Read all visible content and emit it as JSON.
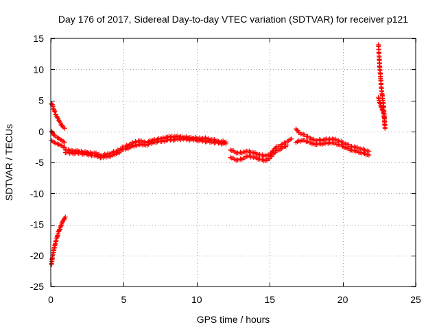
{
  "chart_data": {
    "type": "scatter",
    "title": "Day 176 of 2017, Sidereal Day-to-day VTEC variation (SDTVAR) for receiver p121",
    "xlabel": "GPS time / hours",
    "ylabel": "SDTVAR / TECUs",
    "xlim": [
      0,
      25
    ],
    "ylim": [
      -25,
      15
    ],
    "xticks": [
      0,
      5,
      10,
      15,
      20,
      25
    ],
    "yticks": [
      -25,
      -20,
      -15,
      -10,
      -5,
      0,
      5,
      10,
      15
    ],
    "xtick_labels": [
      "0",
      "5",
      "10",
      "15",
      "20",
      "25"
    ],
    "ytick_labels": [
      "-25",
      "-20",
      "-15",
      "-10",
      "-5",
      "0",
      "5",
      "10",
      "15"
    ],
    "grid": true,
    "legend": "none",
    "marker": "+",
    "series": [
      {
        "name": "SDTVAR",
        "color": "#ff0000",
        "segments": [
          {
            "name": "early-descent-upper",
            "x": [
              0.05,
              0.15,
              0.25,
              0.35,
              0.45,
              0.55,
              0.65,
              0.75,
              0.85,
              0.95
            ],
            "y": [
              4.5,
              4.0,
              3.3,
              2.7,
              2.2,
              1.8,
              1.4,
              1.0,
              0.7,
              0.5
            ]
          },
          {
            "name": "early-descent-mid",
            "x": [
              0.05,
              0.15,
              0.25,
              0.35,
              0.45,
              0.55,
              0.65,
              0.75,
              0.85,
              0.95
            ],
            "y": [
              0.0,
              -0.3,
              -0.6,
              -0.8,
              -1.0,
              -1.1,
              -1.3,
              -1.4,
              -1.6,
              -1.8
            ]
          },
          {
            "name": "early-descent-lower",
            "x": [
              0.05,
              0.15,
              0.25,
              0.35,
              0.45,
              0.55,
              0.65,
              0.75,
              0.85,
              0.95
            ],
            "y": [
              -1.5,
              -1.6,
              -1.8,
              -1.9,
              -2.0,
              -2.1,
              -2.2,
              -2.3,
              -2.5,
              -2.6
            ]
          },
          {
            "name": "early-rise",
            "x": [
              0.05,
              0.1,
              0.15,
              0.2,
              0.25,
              0.3,
              0.35,
              0.4,
              0.45,
              0.5,
              0.55,
              0.6,
              0.65,
              0.7,
              0.75,
              0.8,
              0.85,
              0.9,
              0.95,
              1.0
            ],
            "y": [
              -21.5,
              -20.5,
              -19.8,
              -19.2,
              -18.7,
              -18.2,
              -17.7,
              -17.3,
              -16.9,
              -16.5,
              -16.1,
              -15.8,
              -15.5,
              -15.2,
              -14.9,
              -14.6,
              -14.4,
              -14.2,
              -14.0,
              -13.8
            ]
          },
          {
            "name": "main-trace",
            "x": [
              1.0,
              1.5,
              2.0,
              2.5,
              3.0,
              3.5,
              4.0,
              4.5,
              5.0,
              5.5,
              6.0,
              6.5,
              7.0,
              7.5,
              8.0,
              8.5,
              9.0,
              9.5,
              10.0,
              10.5,
              11.0,
              11.5,
              12.0
            ],
            "y": [
              -3.0,
              -3.1,
              -3.2,
              -3.4,
              -3.5,
              -3.9,
              -3.6,
              -3.2,
              -2.5,
              -2.0,
              -1.5,
              -1.8,
              -1.4,
              -1.2,
              -0.9,
              -0.8,
              -0.9,
              -1.0,
              -1.1,
              -1.1,
              -1.3,
              -1.6,
              -1.7
            ]
          },
          {
            "name": "main-trace-lower",
            "x": [
              1.0,
              1.5,
              2.0,
              2.5,
              3.0,
              3.5,
              4.0,
              4.5,
              5.0,
              5.5,
              6.0,
              6.5,
              7.0,
              7.5,
              8.0,
              9.0,
              10.0,
              11.0,
              12.0
            ],
            "y": [
              -3.4,
              -3.5,
              -3.5,
              -3.7,
              -3.9,
              -4.2,
              -4.0,
              -3.6,
              -2.9,
              -2.5,
              -2.1,
              -2.2,
              -1.8,
              -1.6,
              -1.4,
              -1.2,
              -1.4,
              -1.7,
              -2.0
            ]
          },
          {
            "name": "mid-trace",
            "x": [
              12.3,
              12.6,
              12.9,
              13.2,
              13.5,
              13.8,
              14.1,
              14.4,
              14.7,
              15.0,
              15.3,
              15.6,
              15.9,
              16.2,
              16.5
            ],
            "y": [
              -3.0,
              -3.3,
              -3.5,
              -3.3,
              -3.2,
              -3.4,
              -3.6,
              -3.8,
              -3.9,
              -3.8,
              -2.8,
              -2.4,
              -2.0,
              -1.6,
              -1.2
            ]
          },
          {
            "name": "mid-trace-lower",
            "x": [
              12.3,
              12.6,
              12.9,
              13.2,
              13.5,
              13.8,
              14.1,
              14.4,
              14.7,
              15.0,
              15.3,
              15.6,
              15.9,
              16.2
            ],
            "y": [
              -4.2,
              -4.5,
              -4.6,
              -4.3,
              -4.0,
              -4.1,
              -4.3,
              -4.5,
              -4.7,
              -4.4,
              -3.5,
              -3.0,
              -2.6,
              -2.2
            ]
          },
          {
            "name": "late-trace",
            "x": [
              16.8,
              17.0,
              17.3,
              17.6,
              17.9,
              18.2,
              18.5,
              18.8,
              19.1,
              19.4,
              19.7,
              20.0,
              20.3,
              20.6,
              20.9,
              21.2,
              21.5,
              21.8
            ],
            "y": [
              0.4,
              -0.2,
              -0.5,
              -0.8,
              -1.3,
              -1.5,
              -1.4,
              -1.3,
              -1.2,
              -1.3,
              -1.5,
              -1.8,
              -2.1,
              -2.4,
              -2.6,
              -2.8,
              -3.0,
              -3.2
            ]
          },
          {
            "name": "late-trace-lower",
            "x": [
              16.8,
              17.0,
              17.3,
              17.6,
              17.9,
              18.2,
              18.5,
              18.8,
              19.1,
              19.4,
              19.7,
              20.0,
              20.3,
              20.6,
              20.9,
              21.2,
              21.5,
              21.8
            ],
            "y": [
              -1.8,
              -1.5,
              -1.4,
              -1.6,
              -2.0,
              -2.1,
              -2.0,
              -1.9,
              -1.8,
              -1.9,
              -2.1,
              -2.4,
              -2.7,
              -3.0,
              -3.2,
              -3.4,
              -3.6,
              -3.8
            ]
          },
          {
            "name": "end-spike",
            "x": [
              22.45,
              22.5,
              22.55,
              22.6,
              22.65,
              22.7,
              22.75,
              22.8,
              22.85,
              22.9
            ],
            "y": [
              14.0,
              12.0,
              10.0,
              8.5,
              7.0,
              6.0,
              5.0,
              4.0,
              2.5,
              0.5
            ]
          },
          {
            "name": "end-spike-low",
            "x": [
              22.45,
              22.5,
              22.55,
              22.6,
              22.65,
              22.7,
              22.75,
              22.8,
              22.85,
              22.9
            ],
            "y": [
              5.5,
              5.0,
              4.6,
              4.2,
              3.9,
              3.6,
              3.3,
              3.0,
              2.0,
              0.6
            ]
          }
        ]
      }
    ]
  }
}
